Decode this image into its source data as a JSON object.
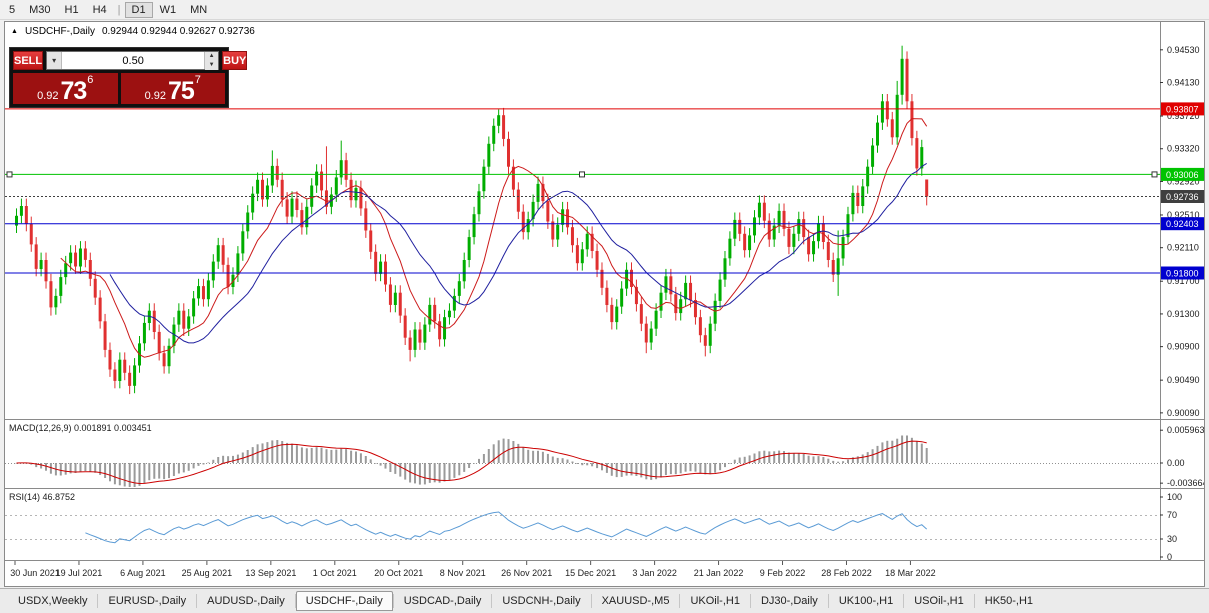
{
  "toolbar": {
    "items": [
      "5",
      "M30",
      "H1",
      "H4",
      "|",
      "D1",
      "W1",
      "MN"
    ],
    "active": "D1"
  },
  "chart": {
    "marker": "▲",
    "symbol": "USDCHF-,Daily",
    "ohlc": "0.92944 0.92944 0.92627 0.92736"
  },
  "trade_widget": {
    "sell_label": "SELL",
    "buy_label": "BUY",
    "volume": "0.50",
    "dropdown_icon": "▾",
    "up_icon": "▲",
    "down_icon": "▼",
    "sell_price_prefix": "0.92",
    "sell_price_main": "73",
    "sell_price_pip": "6",
    "buy_price_prefix": "0.92",
    "buy_price_main": "75",
    "buy_price_pip": "7"
  },
  "tabs": [
    {
      "label": "USDX,Weekly"
    },
    {
      "label": "EURUSD-,Daily"
    },
    {
      "label": "AUDUSD-,Daily"
    },
    {
      "label": "USDCHF-,Daily",
      "active": true
    },
    {
      "label": "USDCAD-,Daily"
    },
    {
      "label": "USDCNH-,Daily"
    },
    {
      "label": "XAUUSD-,M5"
    },
    {
      "label": "UKOil-,H1"
    },
    {
      "label": "DJ30-,Daily"
    },
    {
      "label": "UK100-,H1"
    },
    {
      "label": "USOil-,H1"
    },
    {
      "label": "HK50-,H1"
    }
  ],
  "chart_data": {
    "type": "candlestick",
    "symbol": "USDCHF-,Daily",
    "ylim": [
      0.90015,
      0.9487
    ],
    "bull_color": "#00ad00",
    "bear_color": "#e03030",
    "y_ticks": [
      "0.94530",
      "0.94130",
      "0.93720",
      "0.93320",
      "0.92920",
      "0.92510",
      "0.92110",
      "0.91700",
      "0.91300",
      "0.90900",
      "0.90490",
      "0.90090"
    ],
    "x_labels": [
      "30 Jun 2021",
      "19 Jul 2021",
      "6 Aug 2021",
      "25 Aug 2021",
      "13 Sep 2021",
      "1 Oct 2021",
      "20 Oct 2021",
      "8 Nov 2021",
      "26 Nov 2021",
      "15 Dec 2021",
      "3 Jan 2022",
      "21 Jan 2022",
      "9 Feb 2022",
      "28 Feb 2022",
      "18 Mar 2022"
    ],
    "bars_per_label": 13,
    "overlays": [
      {
        "name": "ma-fast",
        "period": 10,
        "color": "#cc1a1a"
      },
      {
        "name": "ma-slow",
        "period": 20,
        "color": "#20209f"
      }
    ],
    "levels": [
      {
        "price": 0.93807,
        "label": "0.93807",
        "color": "#e00000",
        "style": "solid"
      },
      {
        "price": 0.93006,
        "label": "0.93006",
        "color": "#00c300",
        "style": "solid",
        "handles": true
      },
      {
        "price": 0.92736,
        "label": "0.92736",
        "color": "#3f3f3f",
        "style": "dot",
        "is_bid": true
      },
      {
        "price": 0.92403,
        "label": "0.92403",
        "color": "#0000cf",
        "style": "solid"
      },
      {
        "price": 0.918,
        "label": "0.91800",
        "color": "#0000cf",
        "style": "solid"
      }
    ],
    "indicators": [
      {
        "name": "MACD",
        "label": "MACD(12,26,9) 0.001891 0.003451",
        "fast": 12,
        "slow": 26,
        "signal": 9,
        "axis_ticks": [
          "0.005963",
          "0.00",
          "-0.003664"
        ],
        "histogram_color": "#9a9a9a",
        "signal_color": "#cc0000"
      },
      {
        "name": "RSI",
        "label": "RSI(14) 46.8752",
        "period": 14,
        "axis_ticks": [
          "100",
          "70",
          "30",
          "0"
        ],
        "guides": [
          70,
          30
        ],
        "line_color": "#5b9bd5"
      }
    ],
    "candles": [
      [
        0.9238,
        0.9259,
        0.9229,
        0.925
      ],
      [
        0.925,
        0.9271,
        0.9241,
        0.9262
      ],
      [
        0.9262,
        0.9271,
        0.9231,
        0.924
      ],
      [
        0.924,
        0.9249,
        0.9206,
        0.9215
      ],
      [
        0.9215,
        0.9224,
        0.9176,
        0.9185
      ],
      [
        0.9185,
        0.9205,
        0.9176,
        0.9196
      ],
      [
        0.9196,
        0.9205,
        0.9161,
        0.917
      ],
      [
        0.917,
        0.9179,
        0.9128,
        0.9138
      ],
      [
        0.9138,
        0.9161,
        0.9129,
        0.9152
      ],
      [
        0.9152,
        0.9184,
        0.9143,
        0.9175
      ],
      [
        0.9175,
        0.9201,
        0.9166,
        0.9192
      ],
      [
        0.9192,
        0.9214,
        0.9183,
        0.9205
      ],
      [
        0.9205,
        0.9214,
        0.9179,
        0.9188
      ],
      [
        0.9188,
        0.9219,
        0.9179,
        0.921
      ],
      [
        0.921,
        0.9219,
        0.9187,
        0.9196
      ],
      [
        0.9196,
        0.9205,
        0.9164,
        0.9173
      ],
      [
        0.9173,
        0.9182,
        0.9141,
        0.915
      ],
      [
        0.915,
        0.9159,
        0.9112,
        0.9121
      ],
      [
        0.9121,
        0.913,
        0.9077,
        0.9086
      ],
      [
        0.9086,
        0.9095,
        0.9053,
        0.9062
      ],
      [
        0.9062,
        0.9071,
        0.9039,
        0.9048
      ],
      [
        0.9048,
        0.9083,
        0.9039,
        0.9074
      ],
      [
        0.9074,
        0.9083,
        0.9049,
        0.9058
      ],
      [
        0.9058,
        0.9067,
        0.9032,
        0.9042
      ],
      [
        0.9042,
        0.9076,
        0.9033,
        0.9067
      ],
      [
        0.9067,
        0.9103,
        0.9058,
        0.9094
      ],
      [
        0.9094,
        0.9128,
        0.9085,
        0.9119
      ],
      [
        0.9119,
        0.9143,
        0.911,
        0.9134
      ],
      [
        0.9134,
        0.9143,
        0.9099,
        0.9108
      ],
      [
        0.9108,
        0.9117,
        0.9073,
        0.9082
      ],
      [
        0.9082,
        0.9091,
        0.9057,
        0.9066
      ],
      [
        0.9066,
        0.91,
        0.9057,
        0.9091
      ],
      [
        0.9091,
        0.9126,
        0.9082,
        0.9117
      ],
      [
        0.9117,
        0.9143,
        0.9108,
        0.9134
      ],
      [
        0.9134,
        0.9143,
        0.9103,
        0.9112
      ],
      [
        0.9112,
        0.9136,
        0.9103,
        0.9127
      ],
      [
        0.9127,
        0.9158,
        0.9118,
        0.9149
      ],
      [
        0.9149,
        0.9173,
        0.914,
        0.9164
      ],
      [
        0.9164,
        0.9173,
        0.9139,
        0.9148
      ],
      [
        0.9148,
        0.918,
        0.9139,
        0.9171
      ],
      [
        0.9171,
        0.9203,
        0.9162,
        0.9194
      ],
      [
        0.9194,
        0.9223,
        0.9185,
        0.9214
      ],
      [
        0.9214,
        0.9223,
        0.9181,
        0.919
      ],
      [
        0.919,
        0.9199,
        0.9154,
        0.9163
      ],
      [
        0.9163,
        0.9187,
        0.9154,
        0.9178
      ],
      [
        0.9178,
        0.9213,
        0.9169,
        0.9204
      ],
      [
        0.9204,
        0.924,
        0.9195,
        0.9231
      ],
      [
        0.9231,
        0.9263,
        0.9222,
        0.9254
      ],
      [
        0.9254,
        0.9286,
        0.9245,
        0.9277
      ],
      [
        0.9277,
        0.9303,
        0.9268,
        0.9294
      ],
      [
        0.9294,
        0.9303,
        0.9261,
        0.927
      ],
      [
        0.927,
        0.9296,
        0.9261,
        0.9287
      ],
      [
        0.9287,
        0.933,
        0.9278,
        0.9311
      ],
      [
        0.9311,
        0.932,
        0.9285,
        0.9294
      ],
      [
        0.9294,
        0.9303,
        0.9261,
        0.927
      ],
      [
        0.927,
        0.9279,
        0.924,
        0.9249
      ],
      [
        0.9249,
        0.928,
        0.924,
        0.9271
      ],
      [
        0.9271,
        0.928,
        0.9248,
        0.9257
      ],
      [
        0.9257,
        0.9266,
        0.9227,
        0.9236
      ],
      [
        0.9236,
        0.927,
        0.9227,
        0.9261
      ],
      [
        0.9261,
        0.9296,
        0.9252,
        0.9287
      ],
      [
        0.9287,
        0.9313,
        0.9278,
        0.9304
      ],
      [
        0.9304,
        0.9313,
        0.9272,
        0.9281
      ],
      [
        0.9281,
        0.9335,
        0.9252,
        0.9261
      ],
      [
        0.9261,
        0.9285,
        0.9252,
        0.9276
      ],
      [
        0.9276,
        0.9306,
        0.9267,
        0.9297
      ],
      [
        0.9297,
        0.9342,
        0.9288,
        0.9318
      ],
      [
        0.9318,
        0.9327,
        0.9285,
        0.9294
      ],
      [
        0.9294,
        0.9303,
        0.926,
        0.9269
      ],
      [
        0.9269,
        0.9293,
        0.926,
        0.9284
      ],
      [
        0.9284,
        0.9293,
        0.925,
        0.9259
      ],
      [
        0.9259,
        0.9268,
        0.9223,
        0.9232
      ],
      [
        0.9232,
        0.9241,
        0.9197,
        0.9206
      ],
      [
        0.9206,
        0.9215,
        0.917,
        0.9179
      ],
      [
        0.9179,
        0.9203,
        0.917,
        0.9194
      ],
      [
        0.9194,
        0.9203,
        0.9157,
        0.9166
      ],
      [
        0.9166,
        0.9175,
        0.9132,
        0.9141
      ],
      [
        0.9141,
        0.9165,
        0.9132,
        0.9156
      ],
      [
        0.9156,
        0.9165,
        0.9119,
        0.9128
      ],
      [
        0.9128,
        0.9137,
        0.9092,
        0.9101
      ],
      [
        0.9101,
        0.911,
        0.9072,
        0.9086
      ],
      [
        0.9086,
        0.912,
        0.9077,
        0.9111
      ],
      [
        0.9111,
        0.912,
        0.9086,
        0.9095
      ],
      [
        0.9095,
        0.9126,
        0.9086,
        0.9117
      ],
      [
        0.9117,
        0.915,
        0.9108,
        0.9141
      ],
      [
        0.9141,
        0.915,
        0.9112,
        0.9121
      ],
      [
        0.9121,
        0.913,
        0.909,
        0.9099
      ],
      [
        0.9099,
        0.9135,
        0.909,
        0.9126
      ],
      [
        0.9126,
        0.9143,
        0.9117,
        0.9134
      ],
      [
        0.9134,
        0.9161,
        0.9125,
        0.9152
      ],
      [
        0.9152,
        0.9179,
        0.9143,
        0.917
      ],
      [
        0.917,
        0.9205,
        0.9161,
        0.9196
      ],
      [
        0.9196,
        0.9233,
        0.9187,
        0.9224
      ],
      [
        0.9224,
        0.9261,
        0.9215,
        0.9252
      ],
      [
        0.9252,
        0.9289,
        0.9243,
        0.928
      ],
      [
        0.928,
        0.9319,
        0.9271,
        0.931
      ],
      [
        0.931,
        0.9347,
        0.9301,
        0.9338
      ],
      [
        0.9338,
        0.9369,
        0.9329,
        0.936
      ],
      [
        0.936,
        0.938,
        0.9351,
        0.9373
      ],
      [
        0.9373,
        0.9382,
        0.9335,
        0.9344
      ],
      [
        0.9344,
        0.9353,
        0.9301,
        0.931
      ],
      [
        0.931,
        0.9319,
        0.9273,
        0.9282
      ],
      [
        0.9282,
        0.9291,
        0.9246,
        0.9255
      ],
      [
        0.9255,
        0.9264,
        0.9221,
        0.923
      ],
      [
        0.923,
        0.9255,
        0.9221,
        0.9246
      ],
      [
        0.9246,
        0.9276,
        0.9237,
        0.9267
      ],
      [
        0.9267,
        0.9298,
        0.9258,
        0.9289
      ],
      [
        0.9289,
        0.9298,
        0.9259,
        0.9268
      ],
      [
        0.9268,
        0.9277,
        0.9234,
        0.9243
      ],
      [
        0.9243,
        0.9252,
        0.9212,
        0.9221
      ],
      [
        0.9221,
        0.9248,
        0.9212,
        0.9239
      ],
      [
        0.9239,
        0.9267,
        0.923,
        0.9258
      ],
      [
        0.9258,
        0.9267,
        0.9227,
        0.9236
      ],
      [
        0.9236,
        0.9245,
        0.9205,
        0.9214
      ],
      [
        0.9214,
        0.9223,
        0.9183,
        0.9192
      ],
      [
        0.9192,
        0.9218,
        0.9183,
        0.9209
      ],
      [
        0.9209,
        0.9237,
        0.92,
        0.9228
      ],
      [
        0.9228,
        0.9237,
        0.9198,
        0.9207
      ],
      [
        0.9207,
        0.9216,
        0.9175,
        0.9184
      ],
      [
        0.9184,
        0.9193,
        0.9153,
        0.9162
      ],
      [
        0.9162,
        0.9171,
        0.9132,
        0.9141
      ],
      [
        0.9141,
        0.915,
        0.9111,
        0.912
      ],
      [
        0.912,
        0.9148,
        0.9111,
        0.9139
      ],
      [
        0.9139,
        0.917,
        0.913,
        0.9161
      ],
      [
        0.9161,
        0.9193,
        0.9152,
        0.9184
      ],
      [
        0.9184,
        0.9193,
        0.9154,
        0.9163
      ],
      [
        0.9163,
        0.9172,
        0.9133,
        0.9142
      ],
      [
        0.9142,
        0.9151,
        0.9109,
        0.9118
      ],
      [
        0.9118,
        0.9127,
        0.9082,
        0.9095
      ],
      [
        0.9095,
        0.9121,
        0.9086,
        0.9112
      ],
      [
        0.9112,
        0.9143,
        0.9103,
        0.9134
      ],
      [
        0.9134,
        0.9165,
        0.9125,
        0.9156
      ],
      [
        0.9156,
        0.9185,
        0.9147,
        0.9176
      ],
      [
        0.9176,
        0.9185,
        0.9145,
        0.9154
      ],
      [
        0.9154,
        0.9163,
        0.9122,
        0.9131
      ],
      [
        0.9131,
        0.9157,
        0.9122,
        0.9148
      ],
      [
        0.9148,
        0.9177,
        0.9139,
        0.9168
      ],
      [
        0.9168,
        0.9177,
        0.9138,
        0.9147
      ],
      [
        0.9147,
        0.9156,
        0.9117,
        0.9126
      ],
      [
        0.9126,
        0.9135,
        0.9095,
        0.9104
      ],
      [
        0.9104,
        0.9113,
        0.9078,
        0.9091
      ],
      [
        0.9091,
        0.9127,
        0.9082,
        0.9118
      ],
      [
        0.9118,
        0.9155,
        0.9109,
        0.9146
      ],
      [
        0.9146,
        0.9181,
        0.9137,
        0.9172
      ],
      [
        0.9172,
        0.9207,
        0.9163,
        0.9198
      ],
      [
        0.9198,
        0.9231,
        0.9189,
        0.9222
      ],
      [
        0.9222,
        0.9254,
        0.9213,
        0.9245
      ],
      [
        0.9245,
        0.9254,
        0.9219,
        0.9228
      ],
      [
        0.9228,
        0.9237,
        0.9199,
        0.9208
      ],
      [
        0.9208,
        0.9235,
        0.9199,
        0.9226
      ],
      [
        0.9226,
        0.9257,
        0.9217,
        0.9248
      ],
      [
        0.9248,
        0.9275,
        0.9239,
        0.9266
      ],
      [
        0.9266,
        0.9275,
        0.9235,
        0.9244
      ],
      [
        0.9244,
        0.9253,
        0.9212,
        0.9221
      ],
      [
        0.9221,
        0.9247,
        0.9212,
        0.9238
      ],
      [
        0.9238,
        0.9265,
        0.9229,
        0.9256
      ],
      [
        0.9256,
        0.9265,
        0.9225,
        0.9234
      ],
      [
        0.9234,
        0.9243,
        0.9203,
        0.9212
      ],
      [
        0.9212,
        0.9237,
        0.9203,
        0.9228
      ],
      [
        0.9228,
        0.9255,
        0.9219,
        0.9246
      ],
      [
        0.9246,
        0.9255,
        0.9215,
        0.9224
      ],
      [
        0.9224,
        0.9233,
        0.9194,
        0.9203
      ],
      [
        0.9203,
        0.9228,
        0.9194,
        0.9219
      ],
      [
        0.9219,
        0.925,
        0.921,
        0.9241
      ],
      [
        0.9241,
        0.925,
        0.9209,
        0.9218
      ],
      [
        0.9218,
        0.9227,
        0.9187,
        0.9196
      ],
      [
        0.9196,
        0.9205,
        0.9169,
        0.9178
      ],
      [
        0.9178,
        0.9232,
        0.9152,
        0.9198
      ],
      [
        0.9198,
        0.9233,
        0.9189,
        0.9224
      ],
      [
        0.9224,
        0.9261,
        0.9215,
        0.9252
      ],
      [
        0.9252,
        0.9287,
        0.9243,
        0.9278
      ],
      [
        0.9278,
        0.9287,
        0.9253,
        0.9262
      ],
      [
        0.9262,
        0.9295,
        0.9253,
        0.9286
      ],
      [
        0.9286,
        0.9319,
        0.9277,
        0.931
      ],
      [
        0.931,
        0.9345,
        0.9301,
        0.9336
      ],
      [
        0.9336,
        0.9373,
        0.9327,
        0.9364
      ],
      [
        0.9364,
        0.9399,
        0.9355,
        0.939
      ],
      [
        0.939,
        0.9399,
        0.9359,
        0.9368
      ],
      [
        0.9368,
        0.9377,
        0.9337,
        0.9346
      ],
      [
        0.9346,
        0.9415,
        0.9337,
        0.9398
      ],
      [
        0.9398,
        0.9458,
        0.9386,
        0.9442
      ],
      [
        0.9442,
        0.9451,
        0.9381,
        0.939
      ],
      [
        0.939,
        0.9399,
        0.9336,
        0.9345
      ],
      [
        0.9345,
        0.9354,
        0.9299,
        0.9308
      ],
      [
        0.9308,
        0.9343,
        0.9299,
        0.9334
      ],
      [
        0.92944,
        0.92944,
        0.92627,
        0.92736
      ]
    ]
  }
}
